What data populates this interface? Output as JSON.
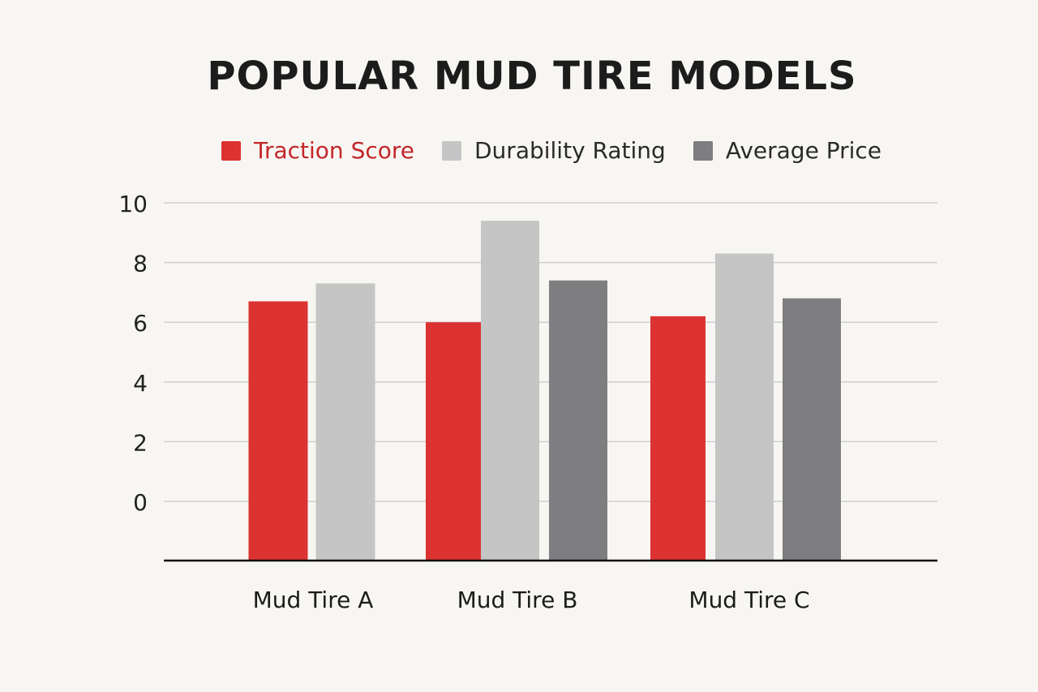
{
  "chart_data": {
    "type": "bar",
    "title": "POPULAR MUD TIRE MODELS",
    "xlabel": "",
    "ylabel": "",
    "categories": [
      "Mud Tire A",
      "Mud Tire B",
      "Mud Tire C"
    ],
    "series": [
      {
        "name": "Traction Score",
        "color": "#dc3232",
        "values": [
          6.7,
          6.0,
          6.2
        ]
      },
      {
        "name": "Durability Rating",
        "color": "#c5c5c5",
        "values": [
          7.3,
          9.4,
          8.3
        ]
      },
      {
        "name": "Average Price",
        "color": "#7e7e80",
        "values": [
          null,
          7.4,
          6.8
        ]
      }
    ],
    "yticks": [
      "0",
      "2",
      "4",
      "6",
      "8",
      "10"
    ],
    "ylim": [
      -2,
      10
    ],
    "grid": true,
    "legend": "top"
  }
}
